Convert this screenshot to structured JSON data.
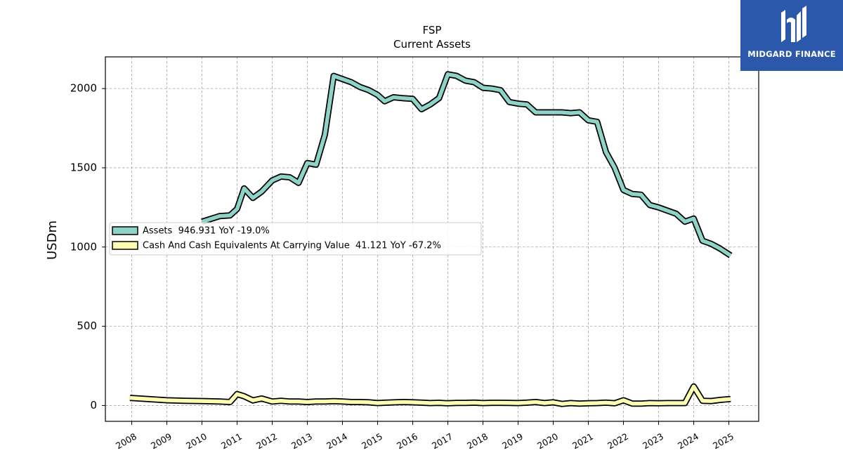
{
  "logo": {
    "text": "MIDGARD FINANCE",
    "color": "#2b58ab"
  },
  "chart_data": {
    "type": "line",
    "title": "FSP",
    "subtitle": "Current  Assets",
    "ylabel": "USDm",
    "xlabel": "",
    "ylim": [
      -100,
      2200
    ],
    "xlim": [
      2007.25,
      2025.85
    ],
    "yticks": [
      0,
      500,
      1000,
      1500,
      2000
    ],
    "xticks": [
      "2008",
      "2009",
      "2010",
      "2011",
      "2012",
      "2013",
      "2014",
      "2015",
      "2016",
      "2017",
      "2018",
      "2019",
      "2020",
      "2021",
      "2022",
      "2023",
      "2024",
      "2025"
    ],
    "grid": true,
    "legend_position": "center-left",
    "series": [
      {
        "name": "Assets  946.931 YoY -19.0%",
        "color": "#8dd3c7",
        "x": [
          2010.0,
          2010.5,
          2010.8,
          2011.0,
          2011.2,
          2011.45,
          2011.7,
          2012.0,
          2012.25,
          2012.5,
          2012.75,
          2013.0,
          2013.25,
          2013.5,
          2013.75,
          2014.0,
          2014.25,
          2014.5,
          2014.75,
          2015.0,
          2015.2,
          2015.45,
          2015.7,
          2016.0,
          2016.25,
          2016.5,
          2016.75,
          2017.0,
          2017.25,
          2017.5,
          2017.75,
          2018.0,
          2018.25,
          2018.5,
          2018.75,
          2019.0,
          2019.25,
          2019.5,
          2019.75,
          2020.0,
          2020.25,
          2020.5,
          2020.75,
          2021.0,
          2021.25,
          2021.5,
          2021.75,
          2022.0,
          2022.25,
          2022.5,
          2022.75,
          2023.0,
          2023.25,
          2023.5,
          2023.75,
          2024.0,
          2024.25,
          2024.5,
          2024.75,
          2025.05
        ],
        "values": [
          1160,
          1195,
          1200,
          1240,
          1370,
          1310,
          1350,
          1420,
          1445,
          1440,
          1405,
          1530,
          1520,
          1710,
          2080,
          2060,
          2040,
          2010,
          1990,
          1960,
          1920,
          1945,
          1940,
          1935,
          1870,
          1900,
          1940,
          2090,
          2080,
          2050,
          2040,
          2005,
          2000,
          1990,
          1915,
          1905,
          1900,
          1850,
          1850,
          1850,
          1850,
          1845,
          1850,
          1800,
          1790,
          1600,
          1500,
          1360,
          1335,
          1330,
          1265,
          1250,
          1230,
          1210,
          1160,
          1180,
          1040,
          1020,
          990,
          946.931
        ]
      },
      {
        "name": "Cash And Cash Equivalents At Carrying Value  41.121 YoY -67.2%",
        "color": "#ffffb3",
        "x": [
          2007.95,
          2008.5,
          2009.0,
          2009.5,
          2010.0,
          2010.5,
          2010.8,
          2011.0,
          2011.2,
          2011.45,
          2011.7,
          2012.0,
          2012.25,
          2012.5,
          2012.75,
          2013.0,
          2013.25,
          2013.5,
          2013.75,
          2014.0,
          2014.25,
          2014.5,
          2014.75,
          2015.0,
          2015.25,
          2015.5,
          2015.75,
          2016.0,
          2016.25,
          2016.5,
          2016.75,
          2017.0,
          2017.25,
          2017.5,
          2017.75,
          2018.0,
          2018.25,
          2018.5,
          2018.75,
          2019.0,
          2019.25,
          2019.5,
          2019.75,
          2020.0,
          2020.25,
          2020.5,
          2020.75,
          2021.0,
          2021.25,
          2021.5,
          2021.75,
          2022.0,
          2022.25,
          2022.5,
          2022.75,
          2023.0,
          2023.25,
          2023.5,
          2023.75,
          2024.0,
          2024.25,
          2024.5,
          2024.75,
          2025.05
        ],
        "values": [
          48,
          40,
          33,
          30,
          28,
          25,
          22,
          72,
          58,
          32,
          44,
          25,
          30,
          25,
          25,
          22,
          25,
          25,
          27,
          25,
          22,
          22,
          20,
          15,
          18,
          20,
          22,
          20,
          18,
          15,
          17,
          14,
          16,
          16,
          18,
          15,
          17,
          17,
          16,
          15,
          18,
          22,
          15,
          20,
          10,
          15,
          12,
          14,
          15,
          18,
          14,
          33,
          12,
          12,
          15,
          14,
          15,
          15,
          15,
          120,
          30,
          28,
          35,
          41.121
        ]
      }
    ]
  }
}
